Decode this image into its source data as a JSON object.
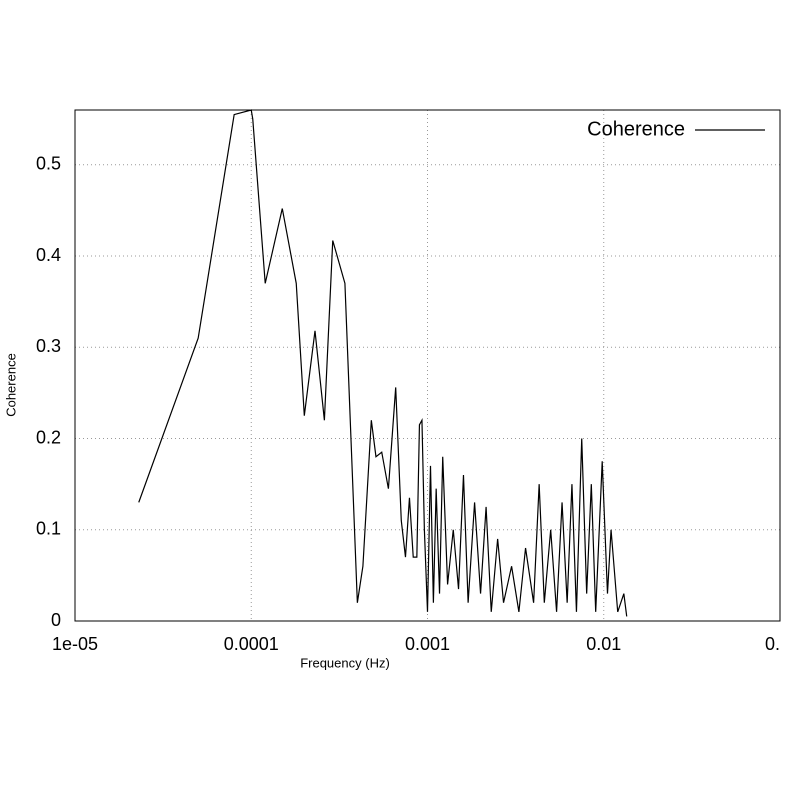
{
  "chart_data": {
    "type": "line",
    "x_label": "Frequency (Hz)",
    "y_label": "Coherence",
    "x_scale": "log",
    "grid": true,
    "legend": "top-right",
    "xlim": [
      1e-05,
      0.1
    ],
    "ylim": [
      0,
      0.56
    ],
    "xticks": [
      {
        "value": 1e-05,
        "label": "1e-05"
      },
      0.0001,
      0.001,
      0.01,
      {
        "value": 0.1,
        "label": "0."
      }
    ],
    "yticks": [
      0,
      0.1,
      0.2,
      0.3,
      0.4,
      0.5
    ],
    "series": [
      {
        "name": "Coherence",
        "color": "#000000",
        "x": [
          2.3e-05,
          5e-05,
          8e-05,
          0.0001,
          0.000102,
          0.00012,
          0.00015,
          0.00018,
          0.0002,
          0.00023,
          0.00026,
          0.00029,
          0.00034,
          0.0004,
          0.00043,
          0.00048,
          0.00051,
          0.00055,
          0.0006,
          0.00066,
          0.00071,
          0.00075,
          0.00079,
          0.00083,
          0.00087,
          0.0009,
          0.00093,
          0.00096,
          0.001,
          0.00104,
          0.00108,
          0.00112,
          0.00117,
          0.00122,
          0.0013,
          0.0014,
          0.0015,
          0.0016,
          0.0017,
          0.00185,
          0.002,
          0.00215,
          0.0023,
          0.0025,
          0.0027,
          0.003,
          0.0033,
          0.0036,
          0.004,
          0.0043,
          0.0046,
          0.005,
          0.0054,
          0.0058,
          0.0062,
          0.0066,
          0.007,
          0.0075,
          0.008,
          0.0085,
          0.009,
          0.0098,
          0.0105,
          0.011,
          0.012,
          0.013,
          0.0135
        ],
        "values": [
          0.13,
          0.31,
          0.555,
          0.56,
          0.55,
          0.37,
          0.452,
          0.37,
          0.225,
          0.318,
          0.22,
          0.417,
          0.37,
          0.02,
          0.06,
          0.22,
          0.18,
          0.185,
          0.145,
          0.256,
          0.11,
          0.07,
          0.135,
          0.07,
          0.07,
          0.215,
          0.22,
          0.1,
          0.01,
          0.17,
          0.02,
          0.145,
          0.03,
          0.18,
          0.04,
          0.1,
          0.035,
          0.16,
          0.02,
          0.13,
          0.03,
          0.125,
          0.01,
          0.09,
          0.02,
          0.06,
          0.01,
          0.08,
          0.02,
          0.15,
          0.02,
          0.1,
          0.01,
          0.13,
          0.02,
          0.15,
          0.01,
          0.2,
          0.03,
          0.15,
          0.01,
          0.175,
          0.03,
          0.1,
          0.01,
          0.03,
          0.005
        ]
      }
    ]
  }
}
